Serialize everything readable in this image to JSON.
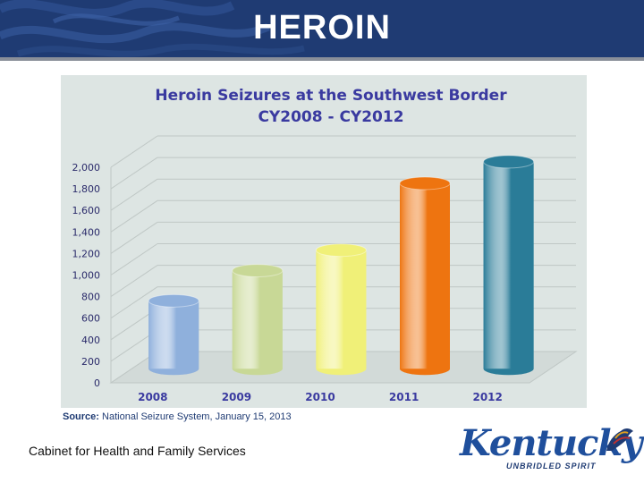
{
  "slide": {
    "title": "HEROIN",
    "footer": "Cabinet for Health and Family Services",
    "source_label": "Source:",
    "source_text": "National Seizure System, January 15, 2013"
  },
  "logo": {
    "word": "Kentucky",
    "tagline": "UNBRIDLED SPIRIT"
  },
  "chart_data": {
    "type": "bar",
    "title": "Heroin Seizures at the Southwest Border",
    "subtitle": "CY2008 - CY2012",
    "categories": [
      "2008",
      "2009",
      "2010",
      "2011",
      "2012"
    ],
    "values": [
      630,
      910,
      1100,
      1720,
      1920
    ],
    "yticks": [
      "0",
      "200",
      "400",
      "600",
      "800",
      "1,000",
      "1,200",
      "1,400",
      "1,600",
      "1,800",
      "2,000"
    ],
    "ylim": [
      0,
      2000
    ],
    "colors": [
      "#8fb0dc",
      "#c8d896",
      "#f0f078",
      "#ee7410",
      "#2a7c98"
    ],
    "grid": true
  }
}
